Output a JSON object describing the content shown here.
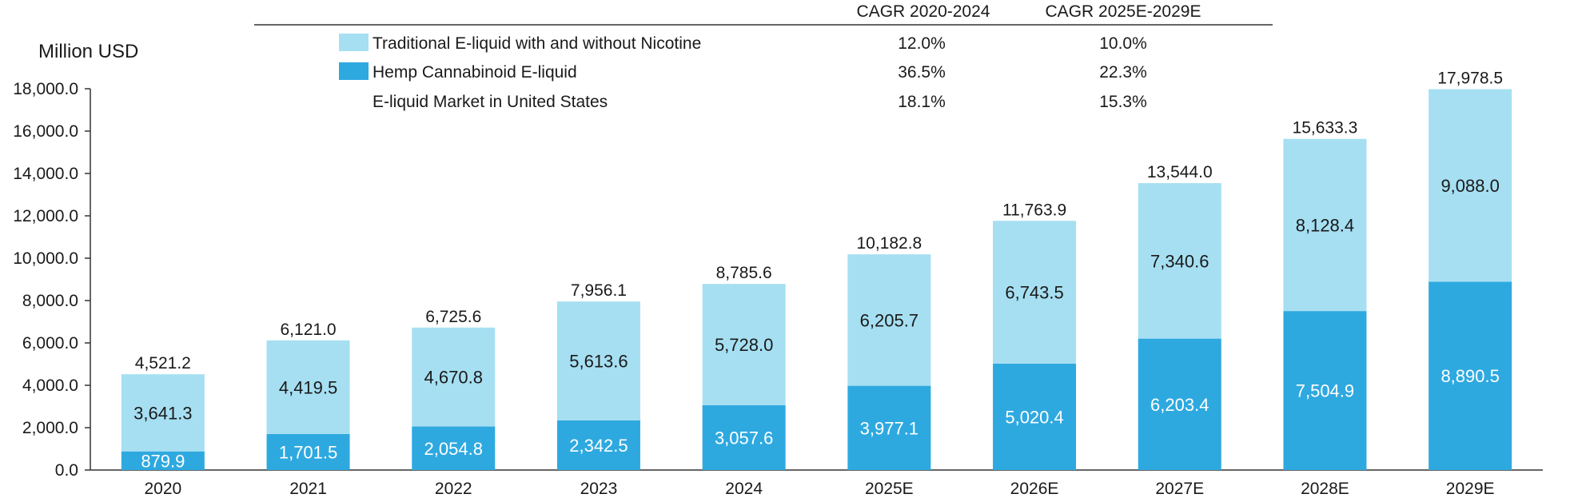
{
  "colors": {
    "hemp": "#2ea9e0",
    "traditional": "#a6dff2",
    "text_dark": "#1a1a1a",
    "text_light": "#ffffff",
    "axis": "#333333"
  },
  "chart_data": {
    "type": "bar",
    "stacked": true,
    "ylabel": "Million USD",
    "ylim": [
      0,
      18000
    ],
    "yticks": [
      "0.0",
      "2,000.0",
      "4,000.0",
      "6,000.0",
      "8,000.0",
      "10,000.0",
      "12,000.0",
      "14,000.0",
      "16,000.0",
      "18,000.0"
    ],
    "ytick_values": [
      0,
      2000,
      4000,
      6000,
      8000,
      10000,
      12000,
      14000,
      16000,
      18000
    ],
    "categories": [
      "2020",
      "2021",
      "2022",
      "2023",
      "2024",
      "2025E",
      "2026E",
      "2027E",
      "2028E",
      "2029E"
    ],
    "series": [
      {
        "name": "Hemp Cannabinoid E-liquid",
        "values": [
          879.9,
          1701.5,
          2054.8,
          2342.5,
          3057.6,
          3977.1,
          5020.4,
          6203.4,
          7504.9,
          8890.5
        ],
        "labels": [
          "879.9",
          "1,701.5",
          "2,054.8",
          "2,342.5",
          "3,057.6",
          "3,977.1",
          "5,020.4",
          "6,203.4",
          "7,504.9",
          "8,890.5"
        ]
      },
      {
        "name": "Traditional E-liquid with and without Nicotine",
        "values": [
          3641.3,
          4419.5,
          4670.8,
          5613.6,
          5728.0,
          6205.7,
          6743.5,
          7340.6,
          8128.4,
          9088.0
        ],
        "labels": [
          "3,641.3",
          "4,419.5",
          "4,670.8",
          "5,613.6",
          "5,728.0",
          "6,205.7",
          "6,743.5",
          "7,340.6",
          "8,128.4",
          "9,088.0"
        ]
      }
    ],
    "totals": [
      4521.2,
      6121.0,
      6725.6,
      7956.1,
      8785.6,
      10182.8,
      11763.9,
      13544.0,
      15633.3,
      17978.5
    ],
    "total_labels": [
      "4,521.2",
      "6,121.0",
      "6,725.6",
      "7,956.1",
      "8,785.6",
      "10,182.8",
      "11,763.9",
      "13,544.0",
      "15,633.3",
      "17,978.5"
    ],
    "legend_position": "top",
    "grid": false
  },
  "cagr_table": {
    "headers": [
      "CAGR 2020-2024",
      "CAGR 2025E-2029E"
    ],
    "rows": [
      {
        "label": "Traditional E-liquid with and without Nicotine",
        "swatch": "traditional",
        "values": [
          "12.0%",
          "10.0%"
        ]
      },
      {
        "label": "Hemp Cannabinoid E-liquid",
        "swatch": "hemp",
        "values": [
          "36.5%",
          "22.3%"
        ]
      },
      {
        "label": "E-liquid Market in United States",
        "swatch": "",
        "values": [
          "18.1%",
          "15.3%"
        ]
      }
    ]
  }
}
